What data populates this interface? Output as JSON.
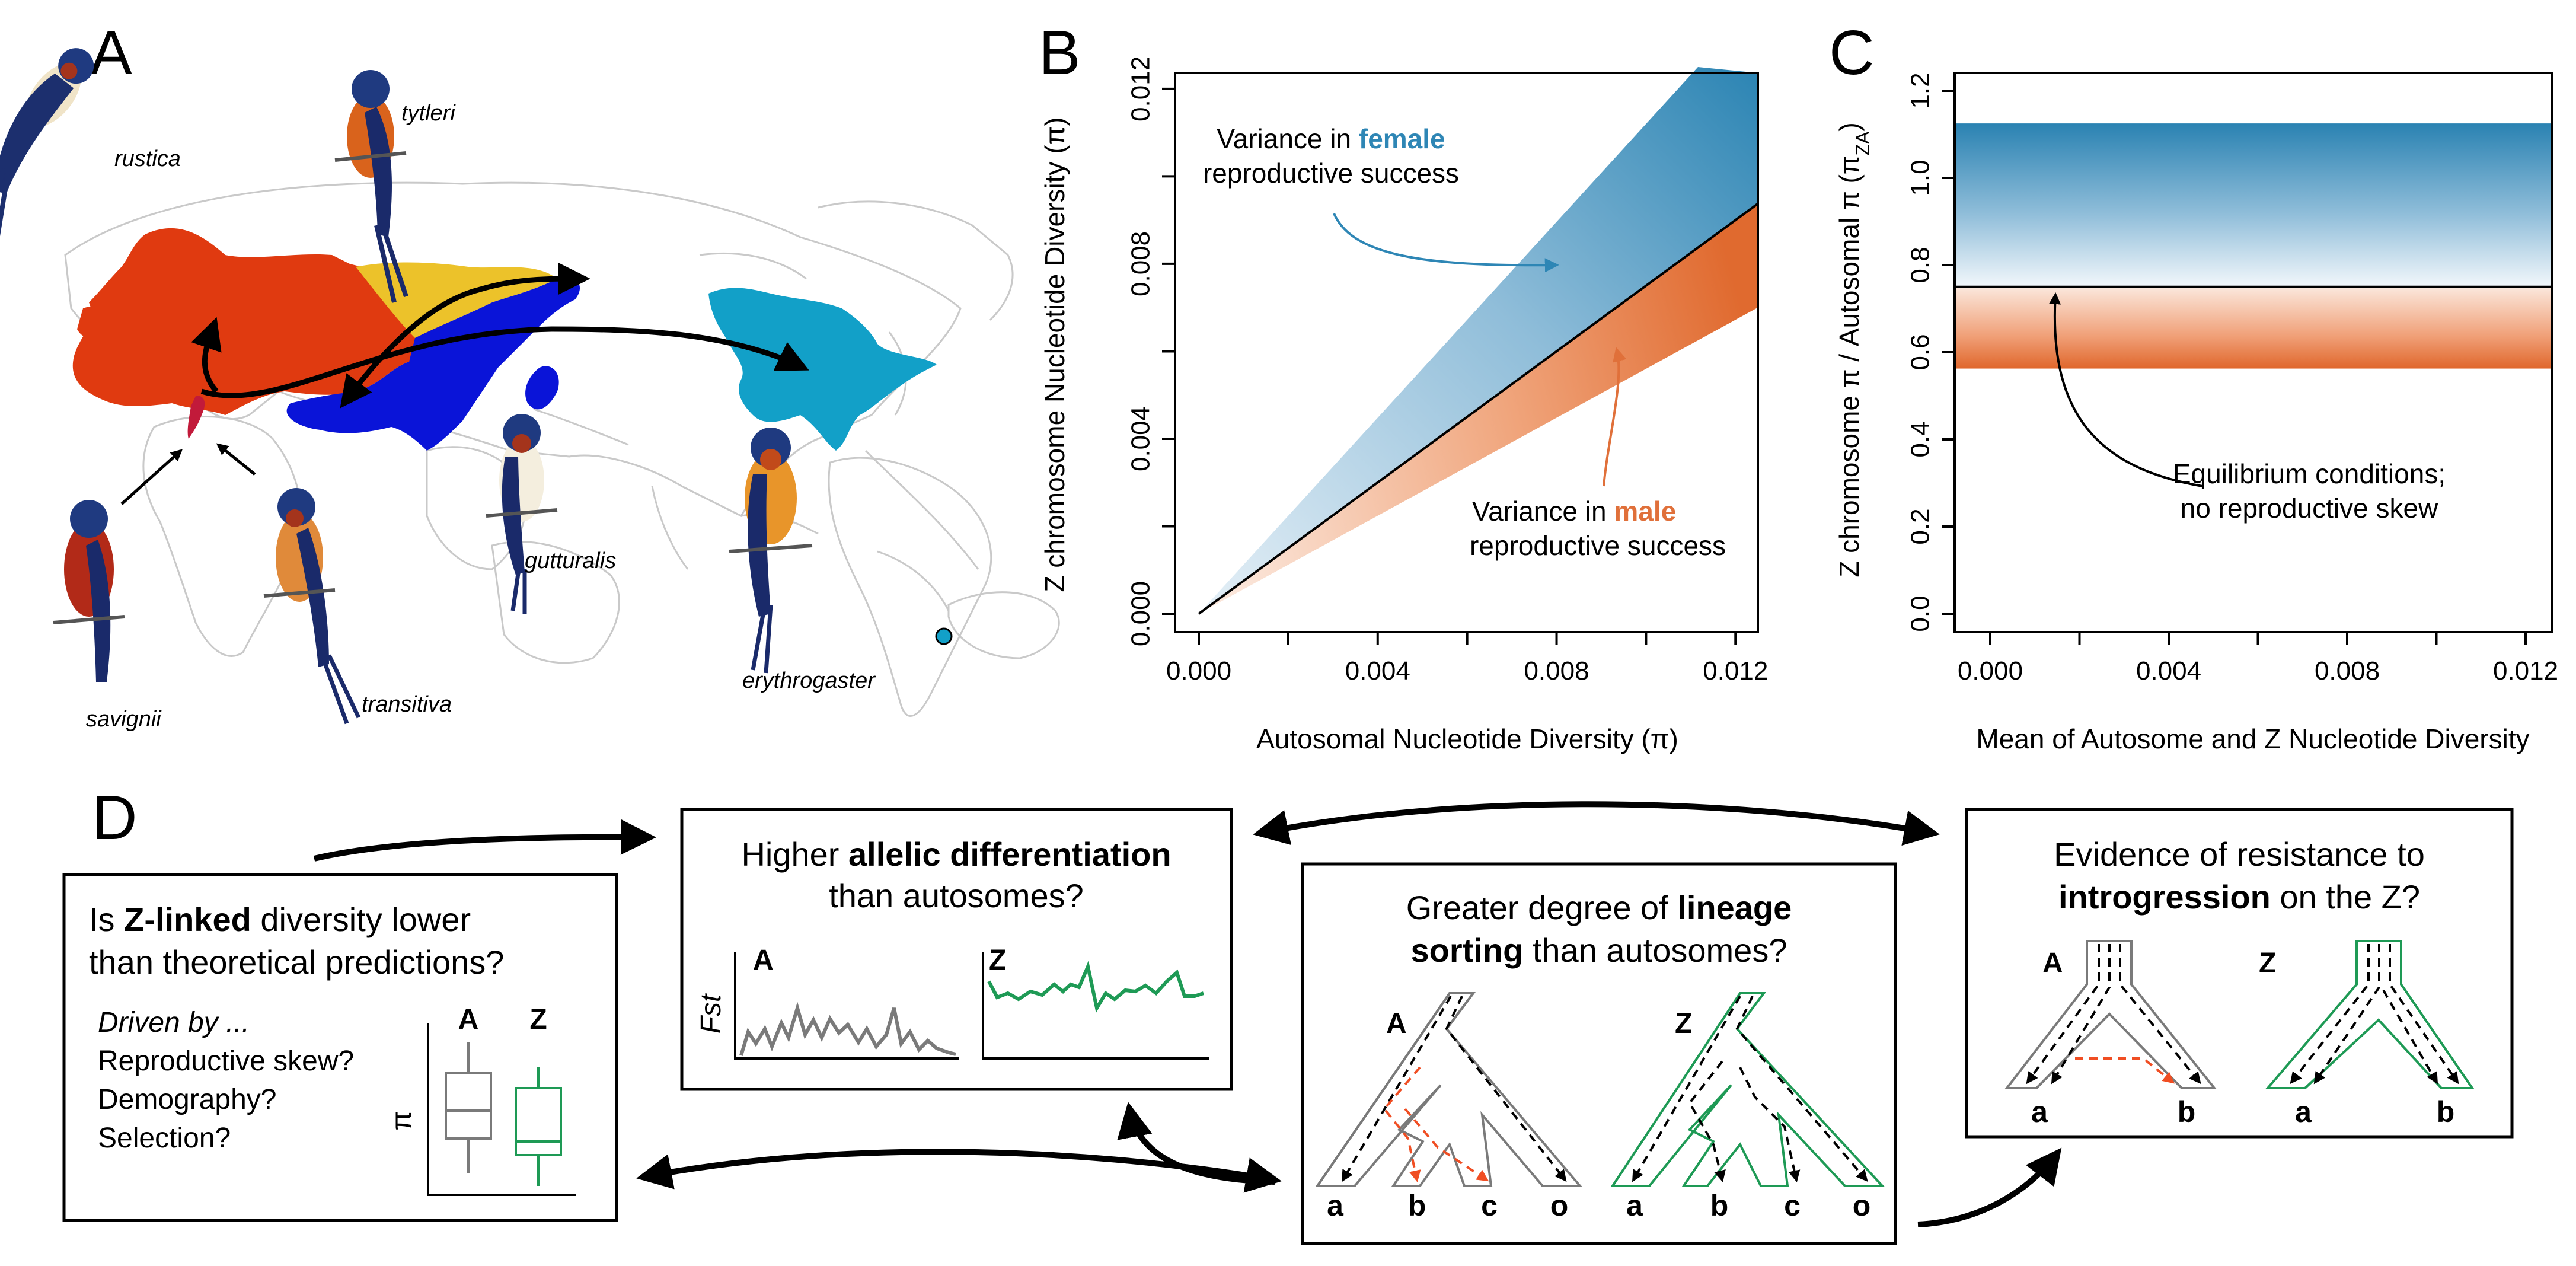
{
  "colors": {
    "female_blue": "#2e86b5",
    "male_orange": "#e0703a",
    "green": "#1e9a55",
    "gray": "#7a7a7a",
    "red_dash": "#f04e23",
    "map_red": "#e03a10",
    "map_yellow": "#ecc22a",
    "map_blue": "#0a14d8",
    "map_cyan": "#12a0c8"
  },
  "panel_a": {
    "letter": "A",
    "species": [
      "rustica",
      "tytleri",
      "gutturalis",
      "erythrogaster",
      "savignii",
      "transitiva"
    ]
  },
  "panel_b": {
    "letter": "B",
    "ylabel": "Z chromosome Nucleotide Diversity (π)",
    "xlabel": "Autosomal Nucleotide Diversity (π)",
    "ann_female": [
      "Variance in ",
      "female",
      "reproductive success"
    ],
    "ann_male": [
      "Variance in ",
      "male",
      "reproductive success"
    ]
  },
  "panel_c": {
    "letter": "C",
    "ylabel_main": "Z chromosome π / Autosomal π (π",
    "ylabel_sub": "ZA",
    "ylabel_close": ")",
    "xlabel": "Mean of Autosome and Z Nucleotide Diversity",
    "annotation": [
      "Equilibrium conditions;",
      "no reproductive skew"
    ]
  },
  "panel_d": {
    "letter": "D",
    "box1": {
      "line1": [
        "Is ",
        "Z-linked",
        " diversity lower"
      ],
      "line2": "than theoretical predictions?",
      "driven": "Driven by ...",
      "items": [
        "Reproductive skew?",
        "Demography?",
        "Selection?"
      ],
      "axis": "π",
      "a_label": "A",
      "z_label": "Z"
    },
    "box2": {
      "line1": [
        "Higher ",
        "allelic differentiation"
      ],
      "line2": "than autosomes?",
      "ylabel": "Fst",
      "a_label": "A",
      "z_label": "Z"
    },
    "box3": {
      "line1": [
        "Greater degree of ",
        "lineage"
      ],
      "line2": [
        "sorting",
        " than autosomes?"
      ],
      "a_label": "A",
      "z_label": "Z",
      "tips": [
        "a",
        "b",
        "c",
        "o"
      ]
    },
    "box4": {
      "line1": "Evidence of resistance to",
      "line2": [
        "introgression",
        " on the Z?"
      ],
      "a_label": "A",
      "z_label": "Z",
      "tips": [
        "a",
        "b"
      ]
    }
  },
  "chart_data": [
    {
      "type": "area",
      "panel": "B",
      "xlabel": "Autosomal Nucleotide Diversity (π)",
      "ylabel": "Z chromosome Nucleotide Diversity (π)",
      "xlim": [
        0.0,
        0.0125
      ],
      "ylim": [
        0.0,
        0.0125
      ],
      "xticks": [
        "0.000",
        "0.004",
        "0.008",
        "0.012"
      ],
      "yticks": [
        "0.000",
        "0.004",
        "0.008",
        "0.012"
      ],
      "series": [
        {
          "name": "female",
          "x": [
            0.0,
            0.0125
          ],
          "lower": [
            0.0,
            0.009375
          ],
          "upper": [
            0.0,
            0.014
          ]
        },
        {
          "name": "male",
          "x": [
            0.0,
            0.0125
          ],
          "lower": [
            0.0,
            0.007
          ],
          "upper": [
            0.0,
            0.009375
          ]
        },
        {
          "name": "equilibrium",
          "x": [
            0.0,
            0.0125
          ],
          "y": [
            0.0,
            0.009375
          ]
        }
      ]
    },
    {
      "type": "area",
      "panel": "C",
      "xlabel": "Mean of Autosome and Z Nucleotide Diversity",
      "ylabel": "Z chromosome π / Autosomal π (πZA)",
      "xlim": [
        -0.0005,
        0.0125
      ],
      "ylim": [
        -0.03,
        1.25
      ],
      "xticks": [
        "0.000",
        "0.004",
        "0.008",
        "0.012"
      ],
      "yticks": [
        "0.0",
        "0.2",
        "0.4",
        "0.6",
        "0.8",
        "1.0",
        "1.2"
      ],
      "series": [
        {
          "name": "female",
          "lower": 0.75,
          "upper": 1.125
        },
        {
          "name": "male",
          "lower": 0.5625,
          "upper": 0.75
        },
        {
          "name": "equilibrium",
          "y": 0.75
        }
      ]
    }
  ]
}
